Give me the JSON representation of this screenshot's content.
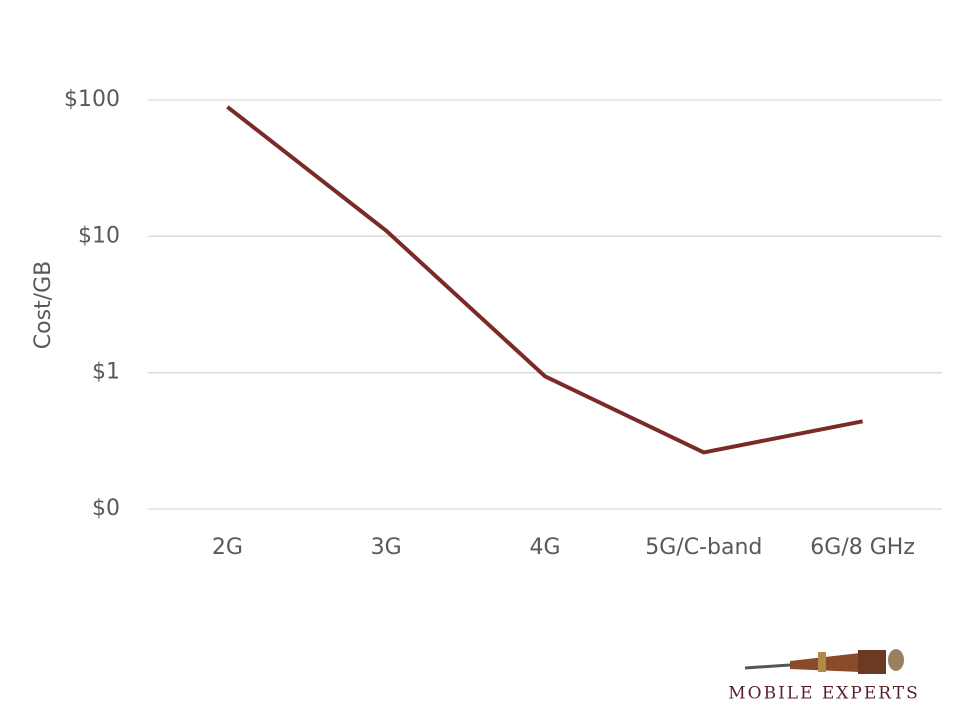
{
  "chart_data": {
    "type": "line",
    "y_label": "Cost/GB",
    "categories": [
      "2G",
      "3G",
      "4G",
      "5G/C-band",
      "6G/8 GHz"
    ],
    "series": [
      {
        "name": "Cost/GB",
        "color": "#7a2a27",
        "values": [
          89,
          11,
          0.94,
          0.26,
          0.44
        ]
      }
    ],
    "ylim": [
      0.1,
      100
    ],
    "yticks": [
      {
        "value": 0.1,
        "label": "$0"
      },
      {
        "value": 1,
        "label": "$1"
      },
      {
        "value": 10,
        "label": "$10"
      },
      {
        "value": 100,
        "label": "$100"
      }
    ],
    "log_scale": true,
    "grid": true
  },
  "logo": "MOBILE EXPERTS"
}
